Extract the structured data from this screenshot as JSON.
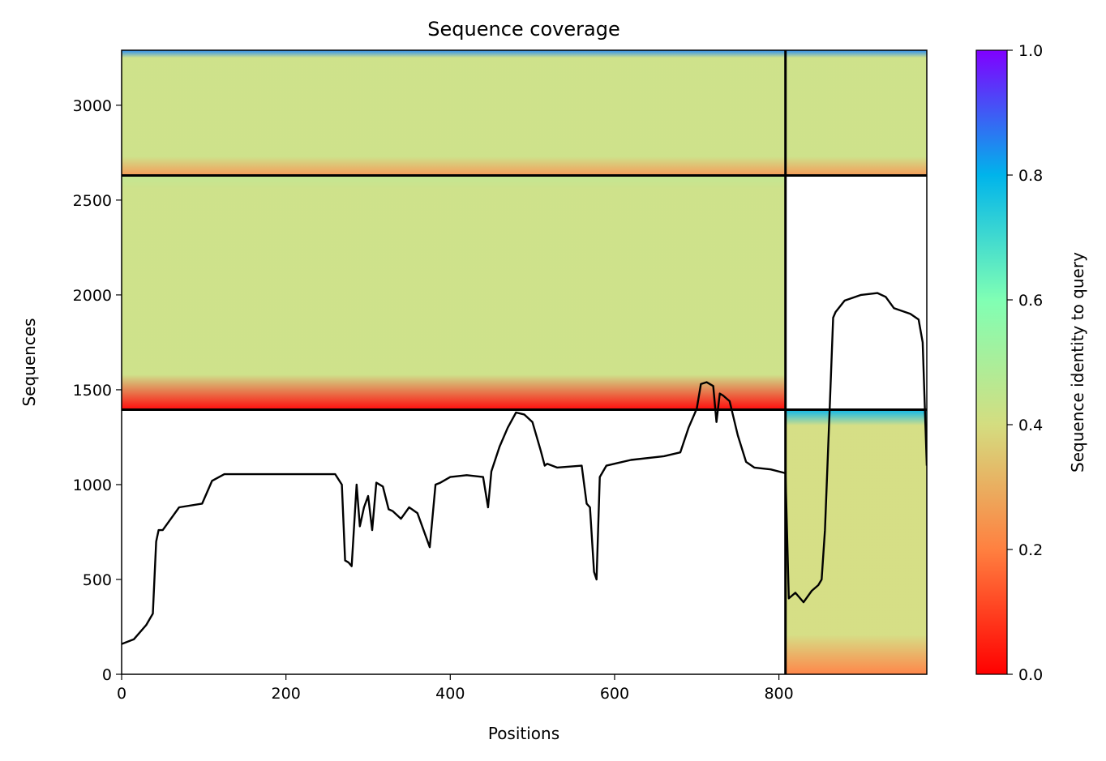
{
  "chart_data": {
    "type": "heatmap",
    "title": "Sequence coverage",
    "xlabel": "Positions",
    "ylabel": "Sequences",
    "xlim": [
      0,
      980
    ],
    "ylim": [
      0,
      3290
    ],
    "xticks": [
      0,
      200,
      400,
      600,
      800
    ],
    "yticks": [
      0,
      500,
      1000,
      1500,
      2000,
      2500,
      3000
    ],
    "grid": false,
    "colorbar": {
      "label": "Sequence identity to query",
      "range": [
        0.0,
        1.0
      ],
      "ticks": [
        "0.0",
        "0.2",
        "0.4",
        "0.6",
        "0.8",
        "1.0"
      ],
      "colormap": "rainbow",
      "colors": [
        "#ff0000",
        "#ff8040",
        "#d4dd80",
        "#80ffb4",
        "#00b4eb",
        "#8000ff"
      ]
    },
    "chain_boundaries": {
      "x_positions": [
        808
      ],
      "y_sequences": [
        1395,
        2630
      ]
    },
    "blocks": [
      {
        "name": "paired",
        "x_range": [
          0,
          980
        ],
        "seq_range": [
          2630,
          3290
        ],
        "identity_top": 0.85,
        "identity_bulk": 0.42,
        "identity_bottom": 0.25
      },
      {
        "name": "chain-1-unpaired",
        "x_range": [
          0,
          808
        ],
        "seq_range": [
          1395,
          2630
        ],
        "identity_top": 0.45,
        "identity_bulk": 0.42,
        "identity_bottom": 0.0
      },
      {
        "name": "chain-2-unpaired",
        "x_range": [
          808,
          980
        ],
        "seq_range": [
          0,
          1395
        ],
        "identity_top": 0.8,
        "identity_bulk": 0.4,
        "identity_bottom": 0.2
      }
    ],
    "coverage_line": {
      "name": "coverage",
      "x": [
        0,
        15,
        30,
        38,
        42,
        45,
        50,
        70,
        98,
        110,
        125,
        190,
        260,
        268,
        272,
        276,
        280,
        286,
        290,
        295,
        300,
        305,
        310,
        318,
        325,
        330,
        340,
        350,
        360,
        375,
        382,
        388,
        400,
        420,
        440,
        446,
        450,
        460,
        470,
        480,
        490,
        500,
        510,
        515,
        518,
        530,
        560,
        566,
        570,
        575,
        578,
        582,
        590,
        600,
        620,
        660,
        680,
        690,
        700,
        705,
        712,
        720,
        724,
        728,
        732,
        740,
        750,
        760,
        770,
        790,
        808,
        812,
        820,
        830,
        840,
        848,
        852,
        856,
        862,
        866,
        869,
        880,
        900,
        920,
        930,
        940,
        960,
        970,
        975,
        980
      ],
      "y": [
        160,
        185,
        260,
        320,
        700,
        760,
        760,
        880,
        900,
        1020,
        1055,
        1055,
        1055,
        1000,
        600,
        590,
        570,
        1000,
        780,
        880,
        940,
        760,
        1010,
        990,
        870,
        860,
        820,
        880,
        850,
        670,
        1000,
        1010,
        1040,
        1050,
        1040,
        880,
        1070,
        1200,
        1300,
        1380,
        1370,
        1330,
        1180,
        1100,
        1110,
        1090,
        1100,
        900,
        880,
        540,
        500,
        1040,
        1100,
        1110,
        1130,
        1150,
        1170,
        1300,
        1400,
        1530,
        1540,
        1520,
        1330,
        1480,
        1470,
        1440,
        1260,
        1120,
        1090,
        1080,
        1060,
        400,
        430,
        380,
        440,
        470,
        500,
        760,
        1420,
        1880,
        1910,
        1970,
        2000,
        2010,
        1990,
        1930,
        1900,
        1870,
        1750,
        1100
      ]
    }
  }
}
